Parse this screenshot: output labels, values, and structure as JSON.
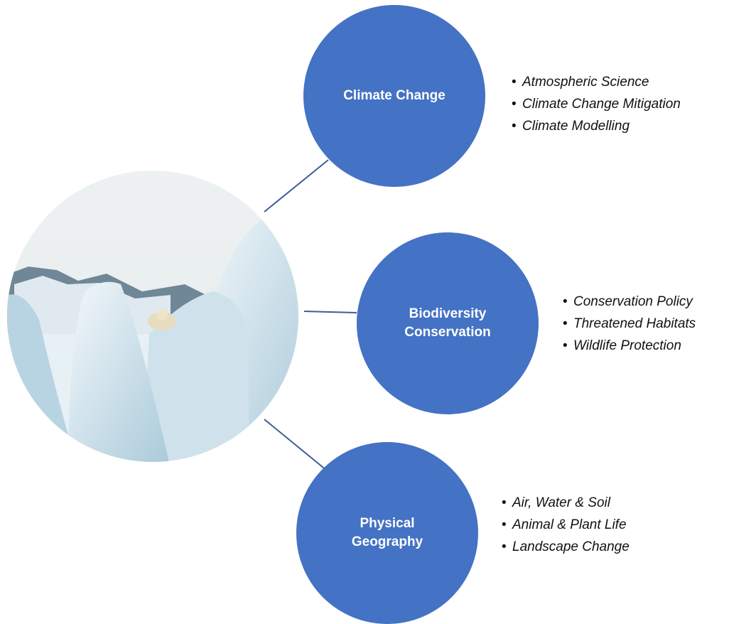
{
  "nodes": [
    {
      "label": "Climate Change",
      "items": [
        "Atmospheric Science",
        "Climate Change Mitigation",
        "Climate Modelling"
      ]
    },
    {
      "label": "Biodiversity Conservation",
      "items": [
        "Conservation Policy",
        "Threatened Habitats",
        "Wildlife Protection"
      ]
    },
    {
      "label": "Physical Geography",
      "items": [
        "Air, Water & Soil",
        "Animal & Plant Life",
        "Landscape Change"
      ]
    }
  ]
}
